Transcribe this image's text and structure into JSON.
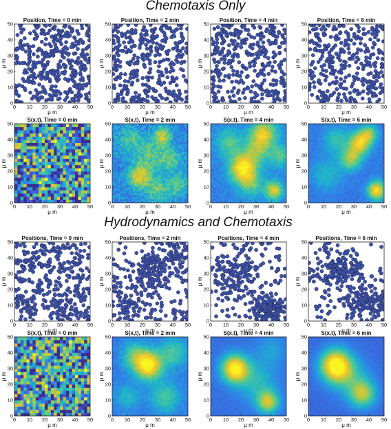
{
  "sections": [
    {
      "title": "Chemotaxis Only"
    },
    {
      "title": "Hydrodynamics and Chemotaxis"
    }
  ],
  "colors": {
    "dot_fill": "#3f53a6",
    "dot_edge": "#1b2354",
    "colormap": [
      "#3b2d8f",
      "#3f58d6",
      "#2f84e8",
      "#1eb3cc",
      "#4ec898",
      "#a8c94c",
      "#f2c52c",
      "#f9f31f"
    ]
  },
  "chart_data": [
    {
      "type": "scatter",
      "title": "Position, Time = 0 min",
      "xlabel": "μ m",
      "ylabel": "μ m",
      "xlim": [
        0,
        50
      ],
      "ylim": [
        0,
        50
      ],
      "xticks": [
        0,
        10,
        20,
        30,
        40,
        50
      ],
      "yticks": [
        0,
        10,
        20,
        30,
        40,
        50
      ],
      "distribution": "uniform",
      "n_points": 400,
      "seed": 11
    },
    {
      "type": "scatter",
      "title": "Position, Time = 2 min",
      "xlabel": "μ m",
      "ylabel": "μ m",
      "xlim": [
        0,
        50
      ],
      "ylim": [
        0,
        50
      ],
      "xticks": [
        0,
        10,
        20,
        30,
        40,
        50
      ],
      "yticks": [
        0,
        10,
        20,
        30,
        40,
        50
      ],
      "distribution": "uniform",
      "n_points": 360,
      "seed": 23
    },
    {
      "type": "scatter",
      "title": "Position, Time = 4 min",
      "xlabel": "μ m",
      "ylabel": "μ m",
      "xlim": [
        0,
        50
      ],
      "ylim": [
        0,
        50
      ],
      "xticks": [
        0,
        10,
        20,
        30,
        40,
        50
      ],
      "yticks": [
        0,
        10,
        20,
        30,
        40,
        50
      ],
      "distribution": "uniform",
      "n_points": 360,
      "seed": 37
    },
    {
      "type": "scatter",
      "title": "Position, Time = 6 min",
      "xlabel": "μ m",
      "ylabel": "μ m",
      "xlim": [
        0,
        50
      ],
      "ylim": [
        0,
        50
      ],
      "xticks": [
        0,
        10,
        20,
        30,
        40,
        50
      ],
      "yticks": [
        0,
        10,
        20,
        30,
        40,
        50
      ],
      "distribution": "uniform",
      "n_points": 340,
      "seed": 41
    },
    {
      "type": "heatmap",
      "title": "S(x,t), Time = 0 min",
      "xlabel": "μ m",
      "ylabel": "μ m",
      "xlim": [
        0,
        50
      ],
      "ylim": [
        0,
        50
      ],
      "xticks": [
        0,
        10,
        20,
        30,
        40,
        50
      ],
      "yticks": [
        0,
        10,
        20,
        30,
        40,
        50
      ],
      "resolution": 25,
      "noise": 0.6,
      "base": 0.35,
      "seed": 5,
      "blobs": []
    },
    {
      "type": "heatmap",
      "title": "S(x,t), Time = 2 min",
      "xlabel": "μ m",
      "ylabel": "μ m",
      "xlim": [
        0,
        50
      ],
      "ylim": [
        0,
        50
      ],
      "xticks": [
        0,
        10,
        20,
        30,
        40,
        50
      ],
      "yticks": [
        0,
        10,
        20,
        30,
        40,
        50
      ],
      "resolution": 40,
      "noise": 0.12,
      "base": 0.3,
      "seed": 7,
      "blobs": [
        {
          "x": 18,
          "y": 17,
          "r": 5,
          "v": 0.55
        },
        {
          "x": 33,
          "y": 42,
          "r": 4,
          "v": 0.5
        },
        {
          "x": 38,
          "y": 28,
          "r": 5,
          "v": 0.3
        },
        {
          "x": 12,
          "y": 40,
          "r": 6,
          "v": 0.25
        },
        {
          "x": 25,
          "y": 30,
          "r": 6,
          "v": 0.3
        },
        {
          "x": 44,
          "y": 12,
          "r": 5,
          "v": 0.25
        },
        {
          "x": 30,
          "y": 8,
          "r": 6,
          "v": 0.3
        }
      ]
    },
    {
      "type": "heatmap",
      "title": "S(x,t), Time = 4 min",
      "xlabel": "μ m",
      "ylabel": "μ m",
      "xlim": [
        0,
        50
      ],
      "ylim": [
        0,
        50
      ],
      "xticks": [
        0,
        10,
        20,
        30,
        40,
        50
      ],
      "yticks": [
        0,
        10,
        20,
        30,
        40,
        50
      ],
      "resolution": 40,
      "noise": 0.06,
      "base": 0.28,
      "seed": 9,
      "blobs": [
        {
          "x": 21,
          "y": 22,
          "r": 6,
          "v": 0.7
        },
        {
          "x": 35,
          "y": 44,
          "r": 6,
          "v": 0.55
        },
        {
          "x": 42,
          "y": 8,
          "r": 4,
          "v": 0.55
        },
        {
          "x": 12,
          "y": 38,
          "r": 6,
          "v": 0.3
        },
        {
          "x": 30,
          "y": 33,
          "r": 6,
          "v": 0.35
        },
        {
          "x": 27,
          "y": 12,
          "r": 6,
          "v": 0.3
        },
        {
          "x": 46,
          "y": 30,
          "r": 5,
          "v": 0.3
        }
      ]
    },
    {
      "type": "heatmap",
      "title": "S(x,t), Time = 6 min",
      "xlabel": "μ m",
      "ylabel": "μ m",
      "xlim": [
        0,
        50
      ],
      "ylim": [
        0,
        50
      ],
      "xticks": [
        0,
        10,
        20,
        30,
        40,
        50
      ],
      "yticks": [
        0,
        10,
        20,
        30,
        40,
        50
      ],
      "resolution": 40,
      "noise": 0.04,
      "base": 0.25,
      "seed": 13,
      "blobs": [
        {
          "x": 34,
          "y": 38,
          "r": 5,
          "v": 0.6
        },
        {
          "x": 28,
          "y": 28,
          "r": 5,
          "v": 0.45
        },
        {
          "x": 45,
          "y": 8,
          "r": 4,
          "v": 0.7
        },
        {
          "x": 40,
          "y": 44,
          "r": 4,
          "v": 0.4
        },
        {
          "x": 18,
          "y": 40,
          "r": 6,
          "v": 0.25
        },
        {
          "x": 12,
          "y": 18,
          "r": 7,
          "v": 0.2
        }
      ]
    },
    {
      "type": "scatter",
      "title": "Positions, Time = 0 min",
      "xlabel": "μ m",
      "ylabel": "μ m",
      "xlim": [
        0,
        50
      ],
      "ylim": [
        0,
        50
      ],
      "xticks": [
        0,
        10,
        20,
        30,
        40,
        50
      ],
      "yticks": [
        0,
        10,
        20,
        30,
        40,
        50
      ],
      "distribution": "uniform",
      "n_points": 400,
      "seed": 53
    },
    {
      "type": "scatter",
      "title": "Positions, Time = 2 min",
      "xlabel": "μ m",
      "ylabel": "μ m",
      "xlim": [
        0,
        50
      ],
      "ylim": [
        0,
        50
      ],
      "xticks": [
        0,
        10,
        20,
        30,
        40,
        50
      ],
      "yticks": [
        0,
        10,
        20,
        30,
        40,
        50
      ],
      "distribution": "clustered",
      "n_points": 380,
      "seed": 59,
      "cluster_fraction": 0.45,
      "clusters": [
        {
          "x": 25,
          "y": 32,
          "sx": 6,
          "sy": 6
        },
        {
          "x": 10,
          "y": 10,
          "sx": 6,
          "sy": 5
        },
        {
          "x": 40,
          "y": 42,
          "sx": 6,
          "sy": 5
        }
      ]
    },
    {
      "type": "scatter",
      "title": "Positions, Time = 4 min",
      "xlabel": "μ m",
      "ylabel": "μ m",
      "xlim": [
        0,
        50
      ],
      "ylim": [
        0,
        50
      ],
      "xticks": [
        0,
        10,
        20,
        30,
        40,
        50
      ],
      "yticks": [
        0,
        10,
        20,
        30,
        40,
        50
      ],
      "distribution": "clustered",
      "n_points": 380,
      "seed": 61,
      "cluster_fraction": 0.7,
      "clusters": [
        {
          "x": 17,
          "y": 31,
          "sx": 7,
          "sy": 7
        },
        {
          "x": 38,
          "y": 8,
          "sx": 6,
          "sy": 4
        }
      ]
    },
    {
      "type": "scatter",
      "title": "Positions, Time = 6 min",
      "xlabel": "μ m",
      "ylabel": "μ m",
      "xlim": [
        0,
        50
      ],
      "ylim": [
        0,
        50
      ],
      "xticks": [
        0,
        10,
        20,
        30,
        40,
        50
      ],
      "yticks": [
        0,
        10,
        20,
        30,
        40,
        50
      ],
      "distribution": "clustered",
      "n_points": 380,
      "seed": 67,
      "cluster_fraction": 0.8,
      "clusters": [
        {
          "x": 20,
          "y": 32,
          "sx": 8,
          "sy": 5
        },
        {
          "x": 38,
          "y": 12,
          "sx": 8,
          "sy": 5
        }
      ]
    },
    {
      "type": "heatmap",
      "title": "S(x,t), Time = 0 min",
      "xlabel": "μ m",
      "ylabel": "μ m",
      "xlim": [
        0,
        50
      ],
      "ylim": [
        0,
        50
      ],
      "xticks": [
        0,
        10,
        20,
        30,
        40,
        50
      ],
      "yticks": [
        0,
        10,
        20,
        30,
        40,
        50
      ],
      "resolution": 25,
      "noise": 0.65,
      "base": 0.35,
      "seed": 71,
      "blobs": []
    },
    {
      "type": "heatmap",
      "title": "S(x,t), Time = 2 min",
      "xlabel": "μ m",
      "ylabel": "μ m",
      "xlim": [
        0,
        50
      ],
      "ylim": [
        0,
        50
      ],
      "xticks": [
        0,
        10,
        20,
        30,
        40,
        50
      ],
      "yticks": [
        0,
        10,
        20,
        30,
        40,
        50
      ],
      "resolution": 40,
      "noise": 0.05,
      "base": 0.25,
      "seed": 73,
      "blobs": [
        {
          "x": 24,
          "y": 32,
          "r": 6,
          "v": 0.75
        },
        {
          "x": 15,
          "y": 38,
          "r": 6,
          "v": 0.35
        },
        {
          "x": 40,
          "y": 40,
          "r": 7,
          "v": 0.3
        },
        {
          "x": 35,
          "y": 12,
          "r": 7,
          "v": 0.3
        },
        {
          "x": 10,
          "y": 12,
          "r": 6,
          "v": 0.2
        }
      ]
    },
    {
      "type": "heatmap",
      "title": "S(x,t), Time = 4 min",
      "xlabel": "μ m",
      "ylabel": "μ m",
      "xlim": [
        0,
        50
      ],
      "ylim": [
        0,
        50
      ],
      "xticks": [
        0,
        10,
        20,
        30,
        40,
        50
      ],
      "yticks": [
        0,
        10,
        20,
        30,
        40,
        50
      ],
      "resolution": 40,
      "noise": 0.02,
      "base": 0.22,
      "seed": 79,
      "blobs": [
        {
          "x": 16,
          "y": 30,
          "r": 6,
          "v": 0.8
        },
        {
          "x": 38,
          "y": 9,
          "r": 5,
          "v": 0.55
        },
        {
          "x": 30,
          "y": 22,
          "r": 9,
          "v": 0.25
        },
        {
          "x": 40,
          "y": 42,
          "r": 7,
          "v": 0.15
        }
      ]
    },
    {
      "type": "heatmap",
      "title": "S(x,t), Time = 6 min",
      "xlabel": "μ m",
      "ylabel": "μ m",
      "xlim": [
        0,
        50
      ],
      "ylim": [
        0,
        50
      ],
      "xticks": [
        0,
        10,
        20,
        30,
        40,
        50
      ],
      "yticks": [
        0,
        10,
        20,
        30,
        40,
        50
      ],
      "resolution": 40,
      "noise": 0.02,
      "base": 0.2,
      "seed": 83,
      "blobs": [
        {
          "x": 18,
          "y": 32,
          "r": 7,
          "v": 0.85
        },
        {
          "x": 36,
          "y": 14,
          "r": 6,
          "v": 0.5
        },
        {
          "x": 28,
          "y": 24,
          "r": 9,
          "v": 0.25
        }
      ]
    }
  ]
}
